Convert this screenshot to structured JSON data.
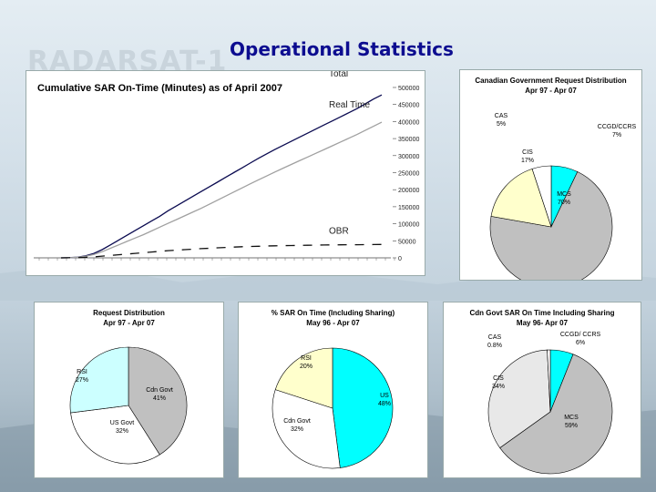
{
  "slide": {
    "title": "Operational Statistics",
    "brand": "RADARSAT-1"
  },
  "chart_data": [
    {
      "type": "line",
      "title": "Cumulative SAR On-Time (Minutes) as of April 2007",
      "y_tick_labels": [
        "0",
        "50000",
        "100000",
        "150000",
        "200000",
        "250000",
        "300000",
        "350000",
        "400000",
        "450000",
        "500000"
      ],
      "ylim": [
        0,
        500000
      ],
      "grid": false,
      "series": [
        {
          "name": "Total",
          "style": "solid",
          "color": "#0a0a50",
          "values": [
            0,
            500,
            2000,
            6000,
            13000,
            24000,
            38000,
            52000,
            66000,
            80000,
            94000,
            108000,
            122000,
            138000,
            152000,
            166000,
            180000,
            194000,
            208000,
            222000,
            236000,
            250000,
            264000,
            278000,
            292000,
            305000,
            318000,
            330000,
            342000,
            354000,
            366000,
            378000,
            390000,
            402000,
            414000,
            426000,
            438000,
            452000,
            466000,
            478000
          ]
        },
        {
          "name": "Real Time",
          "style": "solid",
          "color": "#a0a0a0",
          "values": [
            0,
            400,
            1500,
            4500,
            10000,
            18000,
            28000,
            38000,
            48000,
            58000,
            68000,
            79000,
            90000,
            101000,
            112000,
            123000,
            134000,
            145000,
            157000,
            169000,
            181000,
            193000,
            205000,
            217000,
            229000,
            240000,
            252000,
            263000,
            274000,
            285000,
            296000,
            307000,
            318000,
            329000,
            340000,
            351000,
            362000,
            374000,
            386000,
            398000
          ]
        },
        {
          "name": "OBR",
          "style": "dashed",
          "color": "#111111",
          "values": [
            0,
            200,
            600,
            1500,
            3000,
            5000,
            7000,
            9000,
            11000,
            13000,
            15000,
            17000,
            19000,
            21000,
            22500,
            24000,
            25500,
            27000,
            28200,
            29400,
            30500,
            31500,
            32500,
            33300,
            34000,
            34700,
            35300,
            35800,
            36200,
            36600,
            37000,
            37300,
            37600,
            37900,
            38200,
            38400,
            38600,
            38800,
            39000,
            39200
          ]
        }
      ]
    },
    {
      "type": "pie",
      "title": "Canadian Government Request Distribution",
      "subtitle": "Apr 97 - Apr 07",
      "slices": [
        {
          "label": "CCGD/CCRS",
          "value": 7,
          "value_label": "7%",
          "color": "#00ffff"
        },
        {
          "label": "MCS",
          "value": 70,
          "value_label": "70%",
          "color": "#c0c0c0"
        },
        {
          "label": "CIS",
          "value": 17,
          "value_label": "17%",
          "color": "#ffffcc"
        },
        {
          "label": "CAS",
          "value": 5,
          "value_label": "5%",
          "color": "#ffffff"
        }
      ]
    },
    {
      "type": "pie",
      "title": "Request Distribution",
      "subtitle": "Apr 97 - Apr 07",
      "slices": [
        {
          "label": "Cdn Govt",
          "value": 41,
          "value_label": "41%",
          "color": "#c0c0c0"
        },
        {
          "label": "US Govt",
          "value": 32,
          "value_label": "32%",
          "color": "#ffffff"
        },
        {
          "label": "RSI",
          "value": 27,
          "value_label": "27%",
          "color": "#ccffff"
        }
      ]
    },
    {
      "type": "pie",
      "title": "% SAR On Time (Including Sharing)",
      "subtitle": "May 96 - Apr 07",
      "slices": [
        {
          "label": "US",
          "value": 48,
          "value_label": "48%",
          "color": "#00ffff"
        },
        {
          "label": "Cdn Govt",
          "value": 32,
          "value_label": "32%",
          "color": "#ffffff"
        },
        {
          "label": "RSI",
          "value": 20,
          "value_label": "20%",
          "color": "#ffffcc"
        }
      ]
    },
    {
      "type": "pie",
      "title": "Cdn Govt SAR On Time Including Sharing",
      "subtitle": "May 96- Apr 07",
      "slices": [
        {
          "label": "CCGD/ CCRS",
          "value": 6,
          "value_label": "6%",
          "color": "#00ffff"
        },
        {
          "label": "MCS",
          "value": 59,
          "value_label": "59%",
          "color": "#c0c0c0"
        },
        {
          "label": "CIS",
          "value": 34,
          "value_label": "34%",
          "color": "#e8e8e8"
        },
        {
          "label": "CAS",
          "value": 0.8,
          "value_label": "0.8%",
          "color": "#ffffff"
        }
      ]
    }
  ]
}
